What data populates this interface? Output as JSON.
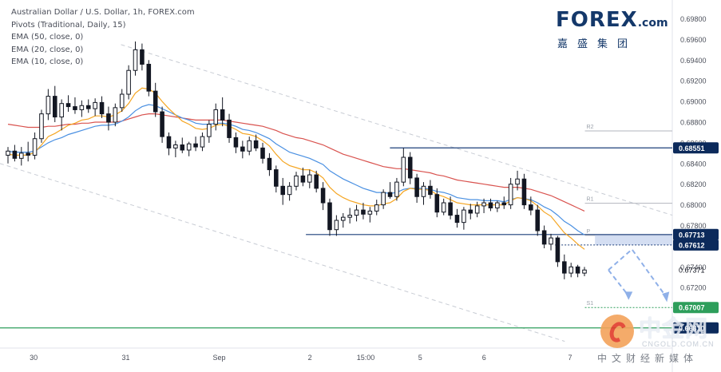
{
  "legend": {
    "line1": "Australian Dollar / U.S. Dollar, 1h, FOREX.com",
    "line2": "Pivots (Traditional, Daily, 15)",
    "line3": "EMA (50, close, 0)",
    "line4": "EMA (20, close, 0)",
    "line5": "EMA (10, close, 0)"
  },
  "logo": {
    "main_prefix": "F",
    "main_suffix": "REX",
    "com": ".com",
    "chinese": "嘉盛集团"
  },
  "watermark": {
    "text": "中金网",
    "url": "CNGOLD.COM.CN",
    "sub": "中文财经新媒体"
  },
  "colors": {
    "up": "#26a69a",
    "down": "#ef5350",
    "candle": "#131722",
    "ema10": "#f5a623",
    "ema20": "#4a90e2",
    "ema50": "#d9534f",
    "hline": "#1c3f7a",
    "pivot": "#b2b5be",
    "zone": "#c5d3ee",
    "arrow": "#8fb0e8",
    "label_bg_navy": "#0c2a5b",
    "label_bg_green": "#2e9e5b",
    "axis_text": "#4a4e59"
  },
  "chart_data": {
    "type": "candlestick",
    "instrument": "Australian Dollar / U.S. Dollar, 1h, FOREX.com",
    "y_range": [
      0.667,
      0.6985
    ],
    "y_ticks": [
      "0.69800",
      "0.69600",
      "0.69400",
      "0.69200",
      "0.69000",
      "0.68800",
      "0.68600",
      "0.68400",
      "0.68200",
      "0.68000",
      "0.67800",
      "0.67600",
      "0.67400",
      "0.67200",
      "0.67000",
      "0.66800"
    ],
    "x_labels": [
      {
        "label": "30",
        "t": 0.05
      },
      {
        "label": "31",
        "t": 0.187
      },
      {
        "label": "Sep",
        "t": 0.326
      },
      {
        "label": "2",
        "t": 0.461
      },
      {
        "label": "15:00",
        "t": 0.544
      },
      {
        "label": "5",
        "t": 0.625
      },
      {
        "label": "6",
        "t": 0.72
      },
      {
        "label": "7",
        "t": 0.848
      }
    ],
    "price_labels": [
      {
        "label": "0.68551",
        "value": 0.68551,
        "style": "navy"
      },
      {
        "label": "0.67713",
        "value": 0.67713,
        "style": "navy"
      },
      {
        "label": "0.67612",
        "value": 0.67612,
        "style": "navy"
      },
      {
        "label": "0.67371",
        "value": 0.67371,
        "style": "plain"
      },
      {
        "label": "0.67007",
        "value": 0.67007,
        "style": "green"
      },
      {
        "label": "0.66810",
        "value": 0.6681,
        "style": "navy"
      }
    ],
    "pivots": [
      {
        "name": "R2",
        "value": 0.68715
      },
      {
        "name": "R1",
        "value": 0.68015
      },
      {
        "name": "P",
        "value": 0.67705
      },
      {
        "name": "S1",
        "value": 0.67007
      }
    ],
    "horizontal_levels": [
      {
        "value": 0.68551,
        "from": 0.58,
        "to": 1.0
      },
      {
        "value": 0.67713,
        "from": 0.455,
        "to": 1.0
      },
      {
        "value": 0.6681,
        "from": 0.0,
        "to": 1.0
      }
    ],
    "zone": {
      "top": 0.67713,
      "bottom": 0.67612,
      "from": 0.885,
      "to": 1.0
    },
    "ohlc": [
      [
        0.6848,
        0.6856,
        0.684,
        0.6852
      ],
      [
        0.6852,
        0.6858,
        0.6842,
        0.6845
      ],
      [
        0.6845,
        0.6856,
        0.6838,
        0.685
      ],
      [
        0.685,
        0.6861,
        0.6842,
        0.6848
      ],
      [
        0.6848,
        0.687,
        0.6844,
        0.6864
      ],
      [
        0.6864,
        0.6892,
        0.686,
        0.6888
      ],
      [
        0.6888,
        0.6912,
        0.6882,
        0.6905
      ],
      [
        0.6905,
        0.6915,
        0.688,
        0.6885
      ],
      [
        0.6885,
        0.6902,
        0.6872,
        0.6898
      ],
      [
        0.6898,
        0.6906,
        0.689,
        0.6895
      ],
      [
        0.6895,
        0.6904,
        0.6888,
        0.6892
      ],
      [
        0.6892,
        0.6901,
        0.6885,
        0.6896
      ],
      [
        0.6896,
        0.6902,
        0.6889,
        0.6893
      ],
      [
        0.6893,
        0.6903,
        0.6886,
        0.6899
      ],
      [
        0.6899,
        0.6905,
        0.6884,
        0.6888
      ],
      [
        0.6888,
        0.6895,
        0.6872,
        0.688
      ],
      [
        0.688,
        0.6898,
        0.6876,
        0.6894
      ],
      [
        0.6894,
        0.6912,
        0.689,
        0.6907
      ],
      [
        0.6907,
        0.6935,
        0.6902,
        0.693
      ],
      [
        0.693,
        0.6958,
        0.6925,
        0.695
      ],
      [
        0.695,
        0.6956,
        0.693,
        0.6936
      ],
      [
        0.6936,
        0.694,
        0.6905,
        0.691
      ],
      [
        0.691,
        0.6918,
        0.6885,
        0.689
      ],
      [
        0.689,
        0.6895,
        0.686,
        0.6866
      ],
      [
        0.6866,
        0.687,
        0.6848,
        0.6855
      ],
      [
        0.6855,
        0.6862,
        0.6846,
        0.6858
      ],
      [
        0.6858,
        0.6865,
        0.685,
        0.6853
      ],
      [
        0.6853,
        0.6861,
        0.6847,
        0.6859
      ],
      [
        0.6859,
        0.6866,
        0.6852,
        0.6856
      ],
      [
        0.6856,
        0.687,
        0.6852,
        0.6866
      ],
      [
        0.6866,
        0.6882,
        0.686,
        0.6878
      ],
      [
        0.6878,
        0.6898,
        0.6872,
        0.6892
      ],
      [
        0.6892,
        0.6904,
        0.6876,
        0.6882
      ],
      [
        0.6882,
        0.6888,
        0.686,
        0.6865
      ],
      [
        0.6865,
        0.687,
        0.685,
        0.6856
      ],
      [
        0.6856,
        0.6862,
        0.6845,
        0.6852
      ],
      [
        0.6852,
        0.6866,
        0.6848,
        0.6862
      ],
      [
        0.6862,
        0.6868,
        0.6852,
        0.6855
      ],
      [
        0.6855,
        0.686,
        0.684,
        0.6845
      ],
      [
        0.6845,
        0.685,
        0.6828,
        0.6834
      ],
      [
        0.6834,
        0.6838,
        0.6812,
        0.6818
      ],
      [
        0.6818,
        0.6826,
        0.68,
        0.681
      ],
      [
        0.681,
        0.6822,
        0.6804,
        0.6818
      ],
      [
        0.6818,
        0.6832,
        0.6814,
        0.6828
      ],
      [
        0.6828,
        0.6836,
        0.6818,
        0.6822
      ],
      [
        0.6822,
        0.6834,
        0.6816,
        0.6829
      ],
      [
        0.6829,
        0.6833,
        0.6812,
        0.6816
      ],
      [
        0.6816,
        0.6822,
        0.6795,
        0.6802
      ],
      [
        0.6802,
        0.6806,
        0.677,
        0.6776
      ],
      [
        0.6776,
        0.679,
        0.677,
        0.6785
      ],
      [
        0.6785,
        0.6792,
        0.6778,
        0.6788
      ],
      [
        0.6788,
        0.6797,
        0.6782,
        0.679
      ],
      [
        0.679,
        0.68,
        0.6784,
        0.6795
      ],
      [
        0.6795,
        0.6802,
        0.6786,
        0.6791
      ],
      [
        0.6791,
        0.6798,
        0.6783,
        0.6794
      ],
      [
        0.6794,
        0.6805,
        0.679,
        0.68
      ],
      [
        0.68,
        0.6815,
        0.6796,
        0.6812
      ],
      [
        0.6812,
        0.6822,
        0.6806,
        0.6808
      ],
      [
        0.6808,
        0.6826,
        0.6804,
        0.6822
      ],
      [
        0.6822,
        0.6855,
        0.6818,
        0.6846
      ],
      [
        0.6846,
        0.6851,
        0.682,
        0.6826
      ],
      [
        0.6826,
        0.683,
        0.6802,
        0.6808
      ],
      [
        0.6808,
        0.6822,
        0.68,
        0.6818
      ],
      [
        0.6818,
        0.6824,
        0.6806,
        0.681
      ],
      [
        0.681,
        0.6816,
        0.6788,
        0.6793
      ],
      [
        0.6793,
        0.6806,
        0.679,
        0.6802
      ],
      [
        0.6802,
        0.6808,
        0.6786,
        0.679
      ],
      [
        0.679,
        0.6796,
        0.6778,
        0.6783
      ],
      [
        0.6783,
        0.6798,
        0.6776,
        0.6795
      ],
      [
        0.6795,
        0.6801,
        0.6786,
        0.6792
      ],
      [
        0.6792,
        0.6803,
        0.6788,
        0.6799
      ],
      [
        0.6799,
        0.6806,
        0.6792,
        0.6802
      ],
      [
        0.6802,
        0.6806,
        0.6794,
        0.6797
      ],
      [
        0.6797,
        0.6804,
        0.6793,
        0.6802
      ],
      [
        0.6802,
        0.6808,
        0.6796,
        0.68
      ],
      [
        0.68,
        0.6826,
        0.6796,
        0.682
      ],
      [
        0.682,
        0.6833,
        0.6814,
        0.6825
      ],
      [
        0.6825,
        0.683,
        0.6796,
        0.68
      ],
      [
        0.68,
        0.6808,
        0.679,
        0.6795
      ],
      [
        0.6795,
        0.68,
        0.677,
        0.6775
      ],
      [
        0.6775,
        0.678,
        0.6758,
        0.6762
      ],
      [
        0.6762,
        0.6772,
        0.6756,
        0.6768
      ],
      [
        0.6768,
        0.677,
        0.674,
        0.6745
      ],
      [
        0.6745,
        0.6752,
        0.6728,
        0.6734
      ],
      [
        0.6734,
        0.6744,
        0.673,
        0.674
      ],
      [
        0.674,
        0.6742,
        0.673,
        0.6734
      ],
      [
        0.6734,
        0.674,
        0.6731,
        0.6737
      ]
    ],
    "ema10": [
      0.6849,
      0.6848,
      0.6848,
      0.6848,
      0.6851,
      0.6858,
      0.6866,
      0.6869,
      0.6873,
      0.6877,
      0.6879,
      0.6882,
      0.6883,
      0.6886,
      0.6886,
      0.6885,
      0.6887,
      0.6891,
      0.6898,
      0.6908,
      0.6913,
      0.6912,
      0.6908,
      0.69,
      0.6893,
      0.6887,
      0.6881,
      0.6878,
      0.6874,
      0.6873,
      0.6874,
      0.6877,
      0.6878,
      0.6876,
      0.6873,
      0.6869,
      0.6868,
      0.6866,
      0.6862,
      0.6857,
      0.6849,
      0.6842,
      0.6838,
      0.6836,
      0.6834,
      0.6834,
      0.6831,
      0.6826,
      0.6817,
      0.6811,
      0.6807,
      0.6804,
      0.6802,
      0.68,
      0.6799,
      0.6799,
      0.6801,
      0.6802,
      0.6806,
      0.6813,
      0.6816,
      0.6815,
      0.6815,
      0.6814,
      0.681,
      0.6808,
      0.6805,
      0.6802,
      0.6801,
      0.68,
      0.68,
      0.68,
      0.68,
      0.68,
      0.68,
      0.6804,
      0.6807,
      0.6806,
      0.6804,
      0.6799,
      0.6793,
      0.6789,
      0.6781,
      0.6773,
      0.6768,
      0.6762,
      0.6757
    ],
    "ema20": [
      0.6852,
      0.6851,
      0.6851,
      0.6851,
      0.6852,
      0.6856,
      0.686,
      0.6863,
      0.6865,
      0.6868,
      0.687,
      0.6872,
      0.6874,
      0.6876,
      0.6877,
      0.6877,
      0.6878,
      0.6881,
      0.6885,
      0.6891,
      0.6895,
      0.6897,
      0.6896,
      0.6893,
      0.689,
      0.6887,
      0.6884,
      0.6882,
      0.6879,
      0.6878,
      0.6878,
      0.6879,
      0.6879,
      0.6878,
      0.6876,
      0.6873,
      0.6872,
      0.687,
      0.6867,
      0.6864,
      0.6859,
      0.6855,
      0.6851,
      0.6849,
      0.6847,
      0.6845,
      0.6842,
      0.6839,
      0.6833,
      0.6829,
      0.6825,
      0.6822,
      0.6819,
      0.6816,
      0.6814,
      0.6812,
      0.6812,
      0.6811,
      0.6812,
      0.6815,
      0.6816,
      0.6816,
      0.6816,
      0.6815,
      0.6813,
      0.6812,
      0.681,
      0.6807,
      0.6806,
      0.6805,
      0.6805,
      0.6804,
      0.6804,
      0.6804,
      0.6803,
      0.6805,
      0.6807,
      0.6806,
      0.6805,
      0.6802,
      0.6798,
      0.6795,
      0.679,
      0.6784,
      0.678,
      0.6775,
      0.6771
    ],
    "ema50": [
      0.6878,
      0.6877,
      0.6876,
      0.6875,
      0.6875,
      0.6875,
      0.6876,
      0.6876,
      0.6877,
      0.6878,
      0.6878,
      0.6879,
      0.6879,
      0.688,
      0.688,
      0.688,
      0.688,
      0.6881,
      0.6883,
      0.6885,
      0.6887,
      0.6888,
      0.6888,
      0.6887,
      0.6886,
      0.6885,
      0.6884,
      0.6883,
      0.6882,
      0.6882,
      0.6882,
      0.6882,
      0.6882,
      0.6881,
      0.688,
      0.6879,
      0.6878,
      0.6877,
      0.6876,
      0.6874,
      0.6872,
      0.6869,
      0.6867,
      0.6865,
      0.6864,
      0.6862,
      0.686,
      0.6858,
      0.6855,
      0.6852,
      0.6849,
      0.6847,
      0.6845,
      0.6843,
      0.6841,
      0.6839,
      0.6837,
      0.6836,
      0.6835,
      0.6835,
      0.6834,
      0.6833,
      0.6832,
      0.6831,
      0.6829,
      0.6828,
      0.6826,
      0.6824,
      0.6823,
      0.6822,
      0.6821,
      0.682,
      0.6819,
      0.6818,
      0.6817,
      0.6817,
      0.6817,
      0.6816,
      0.6815,
      0.6813,
      0.6811,
      0.6809,
      0.6806,
      0.6803,
      0.68,
      0.6797,
      0.6794
    ]
  }
}
